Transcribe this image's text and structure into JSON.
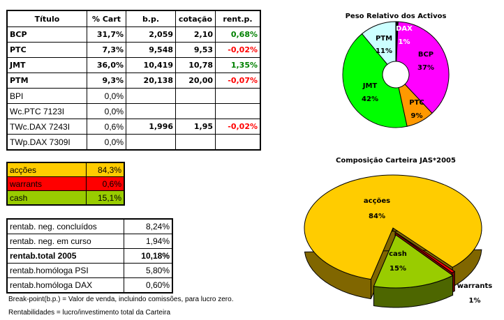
{
  "holdings": {
    "headers": [
      "Título",
      "% Cart",
      "b.p.",
      "cotação",
      "rent.p."
    ],
    "rows": [
      {
        "titulo": "BCP",
        "cart": "31,7%",
        "bp": "2,059",
        "cot": "2,10",
        "rent": "0,68%",
        "bold": true,
        "sign": "pos"
      },
      {
        "titulo": "PTC",
        "cart": "7,3%",
        "bp": "9,548",
        "cot": "9,53",
        "rent": "-0,02%",
        "bold": true,
        "sign": "neg"
      },
      {
        "titulo": "JMT",
        "cart": "36,0%",
        "bp": "10,419",
        "cot": "10,78",
        "rent": "1,35%",
        "bold": true,
        "sign": "pos"
      },
      {
        "titulo": "PTM",
        "cart": "9,3%",
        "bp": "20,138",
        "cot": "20,00",
        "rent": "-0,07%",
        "bold": true,
        "sign": "neg"
      },
      {
        "titulo": "BPI",
        "cart": "0,0%",
        "bp": "",
        "cot": "",
        "rent": "",
        "bold": false,
        "sign": ""
      },
      {
        "titulo": "Wc.PTC 7123I",
        "cart": "0,0%",
        "bp": "",
        "cot": "",
        "rent": "",
        "bold": false,
        "sign": ""
      },
      {
        "titulo": "TWc.DAX 7243I",
        "cart": "0,6%",
        "bp": "1,996",
        "cot": "1,95",
        "rent": "-0,02%",
        "bold": false,
        "sign": "neg"
      },
      {
        "titulo": "TWp.DAX 7309I",
        "cart": "0,0%",
        "bp": "",
        "cot": "",
        "rent": "",
        "bold": false,
        "sign": ""
      }
    ]
  },
  "allocation": [
    {
      "label": "acções",
      "value": "84,3%",
      "color": "#ffcc00"
    },
    {
      "label": "warrants",
      "value": "0,6%",
      "color": "#ff0000"
    },
    {
      "label": "cash",
      "value": "15,1%",
      "color": "#99cc00"
    }
  ],
  "returns": [
    {
      "label": "rentab. neg. concluídos",
      "value": "8,24%",
      "bold": false
    },
    {
      "label": "rentab. neg. em curso",
      "value": "1,94%",
      "bold": false
    },
    {
      "label": "rentab.total 2005",
      "value": "10,18%",
      "bold": true
    },
    {
      "label": "rentab.homóloga PSI",
      "value": "5,80%",
      "bold": false
    },
    {
      "label": "rentab.homóloga DAX",
      "value": "0,60%",
      "bold": false
    }
  ],
  "notes": {
    "bp": "Break-point(b.p.) = Valor de venda, incluindo comissões, para lucro zero.",
    "rent": "Rentabilidades = lucro/investimento total da Carteira"
  },
  "chart_data": [
    {
      "type": "pie",
      "variant": "doughnut",
      "title": "Peso Relativo dos Activos",
      "categories": [
        "DAX",
        "BCP",
        "PTC",
        "JMT",
        "PTM"
      ],
      "values": [
        0.7,
        37.3,
        8.6,
        42.4,
        11.0
      ],
      "labels": [
        "1%",
        "37%",
        "9%",
        "42%",
        "11%"
      ],
      "colors": [
        "#000000",
        "#ff00ff",
        "#ff9900",
        "#00ff00",
        "#ccffff"
      ]
    },
    {
      "type": "pie",
      "variant": "3d-exploded",
      "title": "Composição Carteira JAS*2005",
      "categories": [
        "acções",
        "warrants",
        "cash"
      ],
      "values": [
        84.3,
        0.6,
        15.1
      ],
      "labels": [
        "84%",
        "1%",
        "15%"
      ],
      "colors": [
        "#ffcc00",
        "#ff0000",
        "#99cc00"
      ],
      "side_colors": [
        "#806600",
        "#800000",
        "#4d6600"
      ]
    }
  ]
}
